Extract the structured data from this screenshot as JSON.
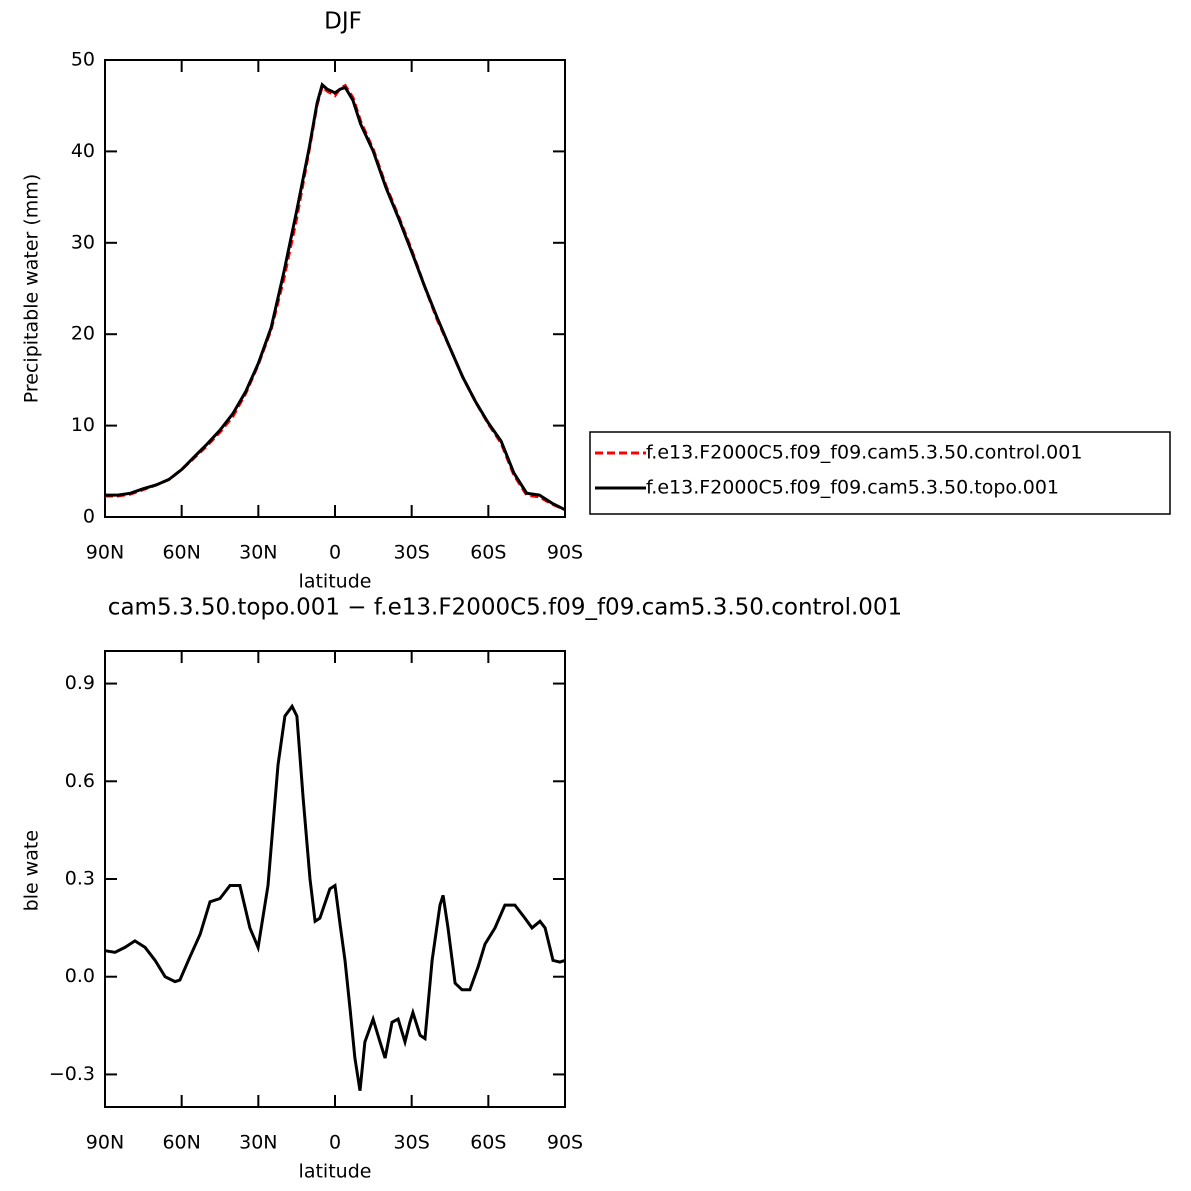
{
  "chart_data": [
    {
      "type": "line",
      "title": "DJF",
      "xlabel": "latitude",
      "ylabel": "Precipitable water (mm)",
      "x": [
        90,
        85,
        80,
        75,
        70,
        65,
        60,
        55,
        50,
        45,
        40,
        35,
        30,
        25,
        20,
        15,
        10,
        7,
        5,
        3,
        0,
        -2,
        -4,
        -7,
        -10,
        -15,
        -20,
        -25,
        -30,
        -35,
        -40,
        -45,
        -50,
        -55,
        -60,
        -65,
        -70,
        -75,
        -80,
        -85,
        -90
      ],
      "series": [
        {
          "name": "f.e13.F2000C5.f09_f09.cam5.3.50.control.001",
          "color": "#ff0000",
          "line_style": "dashed",
          "values": [
            2.3,
            2.3,
            2.5,
            3.0,
            3.5,
            4.1,
            5.2,
            6.5,
            7.8,
            9.3,
            11.0,
            13.5,
            16.7,
            20.5,
            26.1,
            32.7,
            40.3,
            45.1,
            47.1,
            46.6,
            46.1,
            46.9,
            47.2,
            45.9,
            43.3,
            40.2,
            36.2,
            32.8,
            29.2,
            25.3,
            21.6,
            18.5,
            15.3,
            12.6,
            10.2,
            8.1,
            4.6,
            2.4,
            2.2,
            1.4,
            0.8
          ]
        },
        {
          "name": "f.e13.F2000C5.f09_f09.cam5.3.50.topo.001",
          "color": "#000000",
          "line_style": "solid",
          "values": [
            2.4,
            2.4,
            2.6,
            3.1,
            3.5,
            4.1,
            5.2,
            6.6,
            8.0,
            9.5,
            11.3,
            13.7,
            16.8,
            20.7,
            26.8,
            33.5,
            40.5,
            45.3,
            47.3,
            46.8,
            46.4,
            46.8,
            47.0,
            45.6,
            43.0,
            40.0,
            36.0,
            32.6,
            29.0,
            25.3,
            21.8,
            18.5,
            15.3,
            12.6,
            10.3,
            8.3,
            4.8,
            2.6,
            2.4,
            1.5,
            0.8
          ]
        }
      ],
      "xlim": [
        90,
        -90
      ],
      "xticks": [
        {
          "value": 90,
          "label": "90N"
        },
        {
          "value": 60,
          "label": "60N"
        },
        {
          "value": 30,
          "label": "30N"
        },
        0,
        {
          "value": -30,
          "label": "30S"
        },
        {
          "value": -60,
          "label": "60S"
        },
        {
          "value": -90,
          "label": "90S"
        }
      ],
      "ylim": [
        0,
        50
      ],
      "yticks": [
        0,
        10,
        20,
        30,
        40,
        50
      ],
      "legend": "right"
    },
    {
      "type": "line",
      "title": "cam5.3.50.topo.001 − f.e13.F2000C5.f09_f09.cam5.3.50.control.001",
      "xlabel": "latitude",
      "ylabel": "Precipitable water (mm)",
      "x": [
        90,
        86.1,
        82.2,
        78.3,
        74.3,
        70.4,
        66.5,
        62.6,
        60.7,
        56.8,
        52.8,
        48.9,
        45,
        41.1,
        37.2,
        33.3,
        30.1,
        26.2,
        22.3,
        19.6,
        16.8,
        14.9,
        12.5,
        9.8,
        7.8,
        5.9,
        2,
        0,
        -2,
        -3.9,
        -5.9,
        -7.8,
        -9.8,
        -11.7,
        -14.9,
        -17.6,
        -19.6,
        -22.3,
        -24.7,
        -27.4,
        -29.3,
        -30.5,
        -33.3,
        -35.2,
        -38,
        -41.1,
        -42.3,
        -44.2,
        -47,
        -49.7,
        -52.8,
        -56,
        -58.7,
        -62.6,
        -66.5,
        -70.4,
        -74.3,
        -77.1,
        -80.2,
        -82.2,
        -85.3,
        -88,
        -90
      ],
      "values": [
        0.08,
        0.075,
        0.09,
        0.11,
        0.09,
        0.05,
        0.0,
        -0.015,
        -0.01,
        0.06,
        0.13,
        0.23,
        0.24,
        0.28,
        0.28,
        0.15,
        0.09,
        0.28,
        0.65,
        0.8,
        0.83,
        0.8,
        0.55,
        0.3,
        0.17,
        0.18,
        0.27,
        0.28,
        0.16,
        0.05,
        -0.1,
        -0.25,
        -0.35,
        -0.2,
        -0.13,
        -0.2,
        -0.25,
        -0.14,
        -0.13,
        -0.2,
        -0.14,
        -0.11,
        -0.18,
        -0.19,
        0.05,
        0.22,
        0.25,
        0.15,
        -0.02,
        -0.04,
        -0.04,
        0.03,
        0.1,
        0.15,
        0.22,
        0.22,
        0.18,
        0.15,
        0.17,
        0.15,
        0.05,
        0.045,
        0.05
      ],
      "color": "#000000",
      "xlim": [
        90,
        -90
      ],
      "xticks": [
        {
          "value": 90,
          "label": "90N"
        },
        {
          "value": 60,
          "label": "60N"
        },
        {
          "value": 30,
          "label": "30N"
        },
        0,
        {
          "value": -30,
          "label": "30S"
        },
        {
          "value": -60,
          "label": "60S"
        },
        {
          "value": -90,
          "label": "90S"
        }
      ],
      "ylim": [
        -0.4,
        1.0
      ],
      "yticks": [
        {
          "value": -0.3,
          "label": "−0.3"
        },
        {
          "value": 0.0,
          "label": "0.0"
        },
        0.3,
        0.6,
        0.9
      ]
    }
  ]
}
